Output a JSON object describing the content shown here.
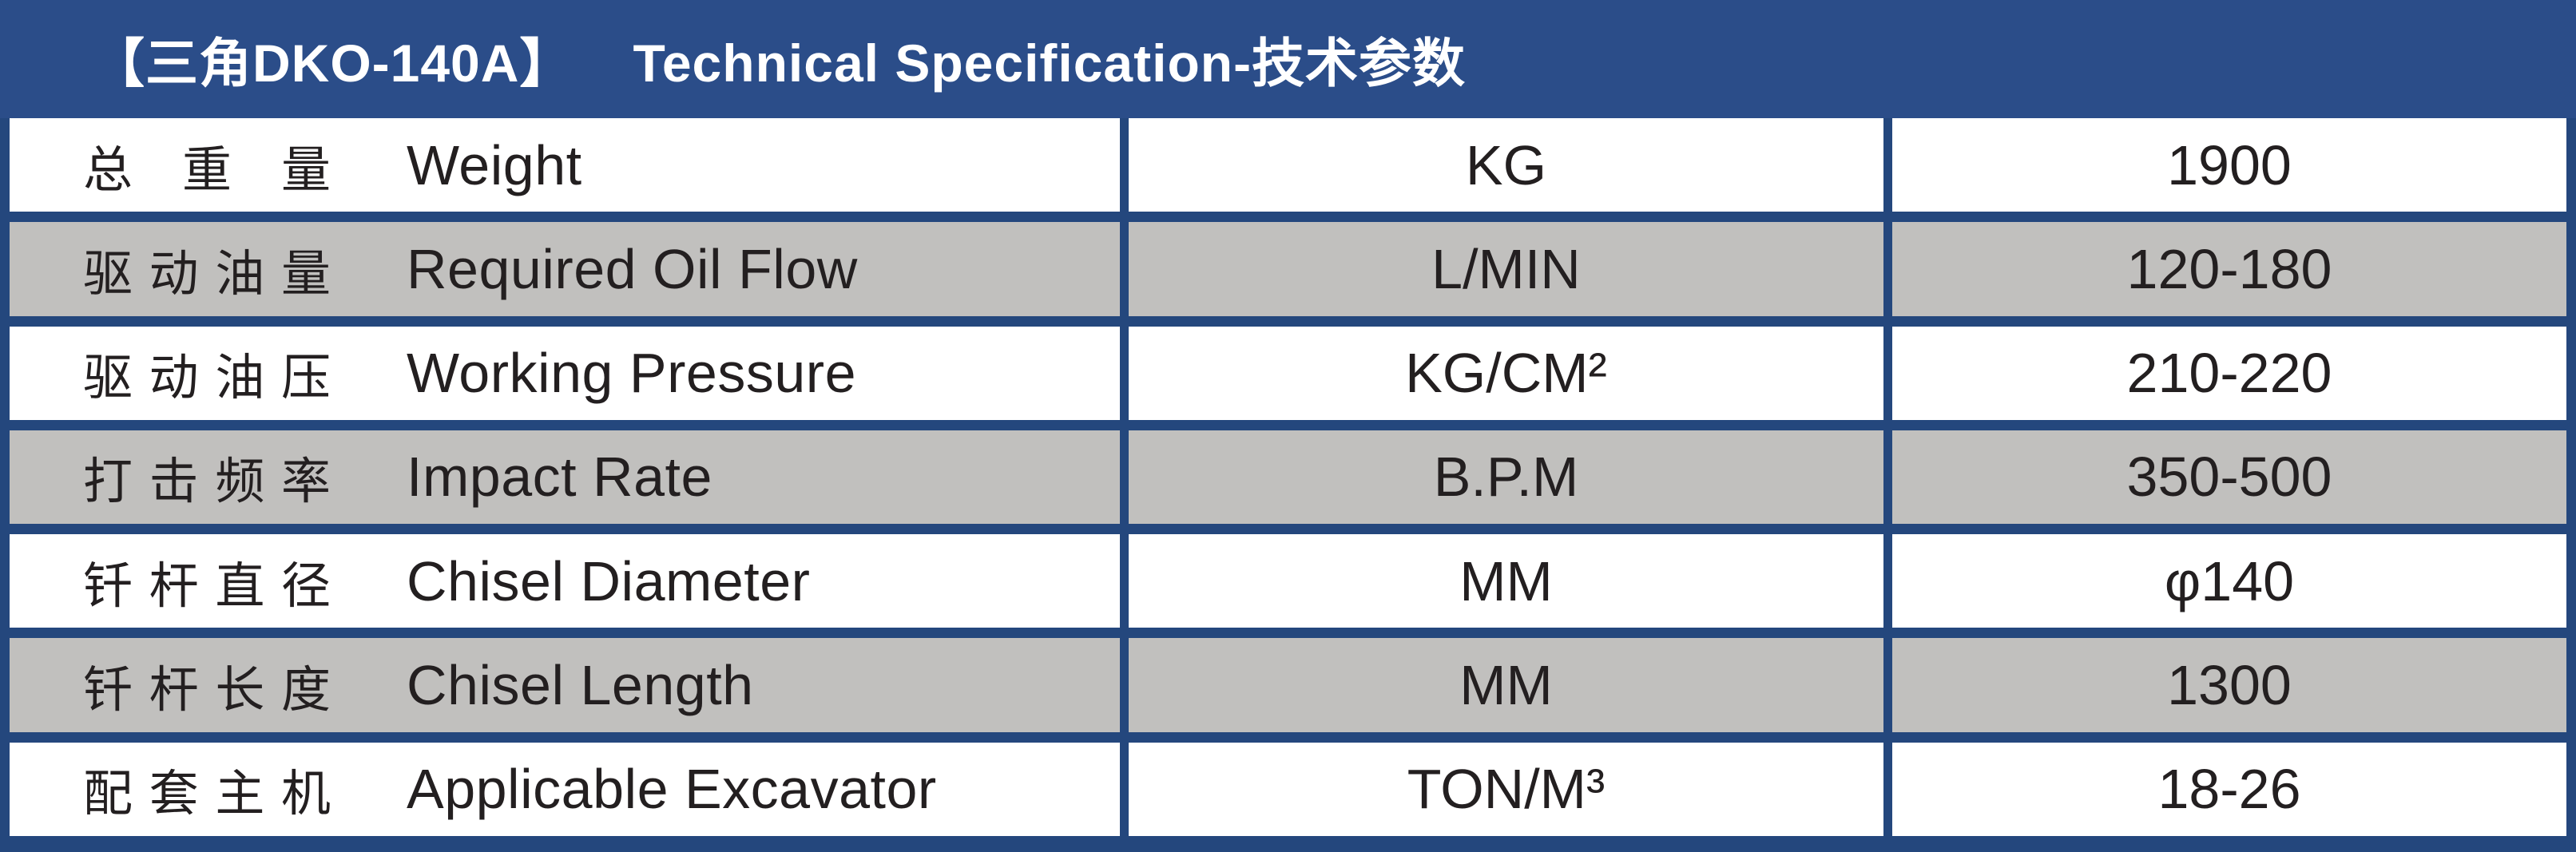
{
  "title": {
    "model": "【三角DKO-140A】",
    "text": "Technical Specification-技术参数"
  },
  "colors": {
    "header_blue": "#2B4D89",
    "border_blue": "#24477D",
    "row_gray": "#C1C0BE",
    "row_white": "#FFFFFF",
    "text_dark": "#231F20",
    "title_text": "#FFFFFF"
  },
  "table": {
    "rows": [
      {
        "label_cn": "总 重 量",
        "label_en": "Weight",
        "unit": "KG",
        "value": "1900"
      },
      {
        "label_cn": "驱动油量",
        "label_en": "Required Oil Flow",
        "unit": "L/MIN",
        "value": "120-180"
      },
      {
        "label_cn": "驱动油压",
        "label_en": "Working Pressure",
        "unit": "KG/CM²",
        "value": "210-220"
      },
      {
        "label_cn": "打击频率",
        "label_en": "Impact Rate",
        "unit": "B.P.M",
        "value": "350-500"
      },
      {
        "label_cn": "钎杆直径",
        "label_en": "Chisel Diameter",
        "unit": "MM",
        "value": "φ140"
      },
      {
        "label_cn": "钎杆长度",
        "label_en": "Chisel Length",
        "unit": "MM",
        "value": "1300"
      },
      {
        "label_cn": "配套主机",
        "label_en": "Applicable Excavator",
        "unit": "TON/M³",
        "value": "18-26"
      }
    ]
  }
}
